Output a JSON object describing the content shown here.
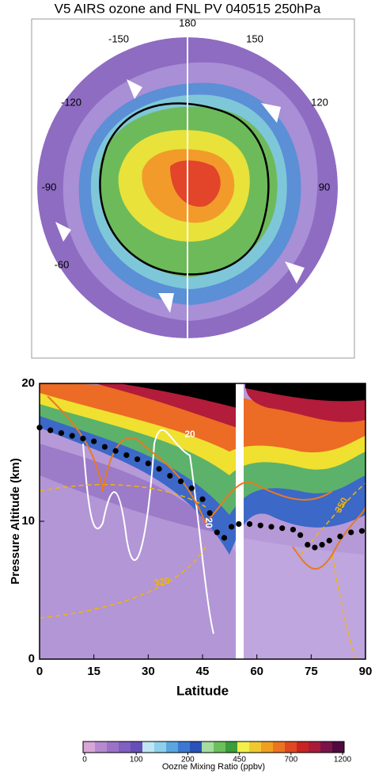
{
  "title": "V5 AIRS ozone and FNL PV 040515 250hPa",
  "map": {
    "lon_labels": [
      "180",
      "-150",
      "150",
      "-120",
      "120",
      "-90",
      "90",
      "-60"
    ]
  },
  "chart_data": {
    "type": "line",
    "x_label": "Latitude",
    "y_label": "Pressure Altitude (km)",
    "xlim": [
      0,
      90
    ],
    "ylim": [
      0,
      20
    ],
    "xticks": [
      0,
      15,
      30,
      45,
      60,
      75,
      90
    ],
    "yticks": [
      0,
      10,
      20
    ],
    "series": [
      {
        "color": "#000000",
        "x": [
          0,
          3,
          6,
          9,
          12,
          15,
          18,
          21,
          24,
          27,
          30,
          33,
          36,
          39,
          42,
          45,
          47,
          49,
          51,
          53,
          55,
          58,
          61,
          64,
          67,
          70,
          72,
          74,
          76,
          78,
          80,
          83,
          86,
          89
        ],
        "values": [
          16.8,
          16.6,
          16.4,
          16.2,
          16.0,
          15.8,
          15.4,
          15.1,
          14.8,
          14.5,
          14.2,
          13.8,
          13.3,
          12.9,
          12.4,
          11.6,
          10.6,
          9.2,
          8.8,
          9.6,
          9.8,
          9.8,
          9.7,
          9.6,
          9.5,
          9.4,
          9.0,
          8.3,
          8.1,
          8.3,
          8.6,
          8.9,
          9.2,
          9.3
        ]
      }
    ],
    "annotations": [
      "20",
      "20",
      "320",
      "350"
    ],
    "colorbar": {
      "label": "Oozne Mixing Ratio (ppbv)",
      "ticks": [
        0,
        100,
        200,
        450,
        700,
        1200
      ]
    }
  }
}
